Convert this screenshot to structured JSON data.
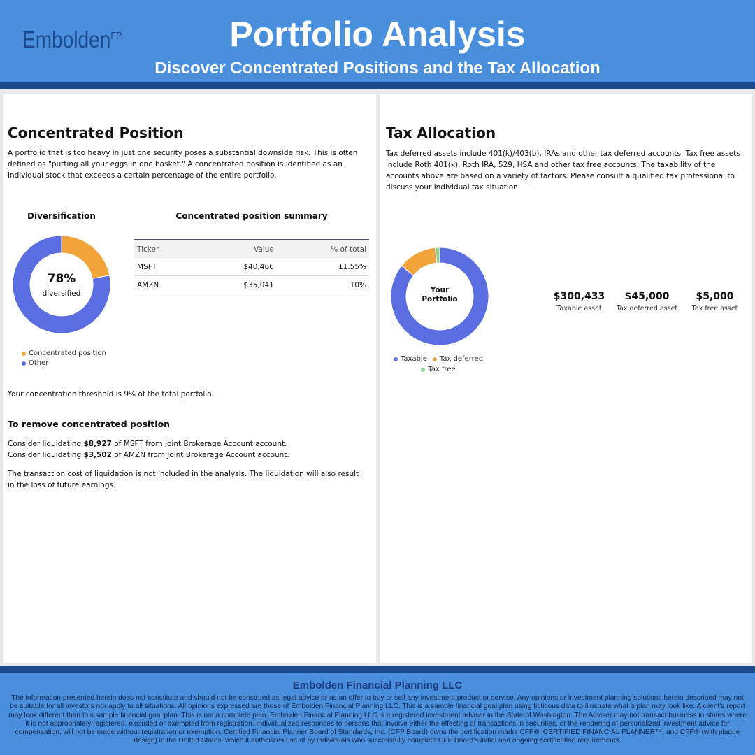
{
  "header": {
    "logo": "Embolden",
    "logo_sup": "FP",
    "title": "Portfolio Analysis",
    "subtitle": "Discover Concentrated Positions and the Tax Allocation"
  },
  "concentrated": {
    "heading": "Concentrated Position",
    "intro": "A portfolio that is too heavy in just one security poses a substantial downside risk. This is often defined as \"putting all your eggs in one basket.\" A concentrated position is identified as an individual stock that exceeds a certain percentage of the entire portfolio.",
    "table": {
      "title": "Concentrated position summary",
      "header": [
        "Ticker",
        "Value",
        "% of total"
      ],
      "rows": [
        [
          "MSFT",
          "$40,466",
          "11.55%"
        ],
        [
          "AMZN",
          "$35,041",
          "10%"
        ]
      ]
    },
    "threshold": "Your concentration threshold is 9% of the total portfolio.",
    "remove_heading": "To remove concentrated position",
    "actions": [
      [
        "Consider liquidating ",
        "$8,927",
        " of MSFT from Joint Brokerage Account account."
      ],
      [
        "Consider liquidating ",
        "$3,502",
        " of AMZN from Joint Brokerage Account account."
      ]
    ],
    "note": "The transaction cost of liquidation is not included in the analysis. The liquidation will also result in the loss of future earnings."
  },
  "tax": {
    "heading": "Tax Allocation",
    "intro": "Tax deferred assets include 401(k)/403(b), IRAs and other tax deferred accounts. Tax free assets include Roth 401(k), Roth IRA, 529, HSA and other tax free accounts. The taxability of the accounts above are based on a variety of factors. Please consult a qualified tax professional to discuss your individual tax situation.",
    "cards": [
      {
        "amount": "$300,433",
        "label": "Taxable asset"
      },
      {
        "amount": "$45,000",
        "label": "Tax deferred asset"
      },
      {
        "amount": "$5,000",
        "label": "Tax free asset"
      }
    ]
  },
  "chart_data": [
    {
      "type": "donut",
      "title": "Diversification",
      "center_text": "78%",
      "center_subtext": "diversified",
      "categories": [
        "Concentrated position",
        "Other"
      ],
      "values": [
        22,
        78
      ],
      "colors": [
        "#f2a33a",
        "#5b6ee1"
      ],
      "legend": "bottom-left"
    },
    {
      "type": "donut",
      "center_text": "Your Portfolio",
      "categories": [
        "Taxable",
        "Tax deferred",
        "Tax free"
      ],
      "values": [
        300433,
        45000,
        5000
      ],
      "colors": [
        "#5b6ee1",
        "#f2a33a",
        "#8fd18f"
      ],
      "legend": "bottom-center"
    }
  ],
  "footer": {
    "company": "Embolden Financial Planning LLC",
    "disclaimer": "The information presented herein does not constitute and should not be construed as legal advice or as an offer to buy or sell any investment product or service. Any opinions or investment planning solutions herein described may not be suitable for all investors nor apply to all situations. All opinions expressed are those of Embolden Financial Planning LLC. This is a sample financial goal plan using fictitious data to illustrate what a plan may look like. A client's report may look different than this sample financial goal plan. This is not a complete plan. Embolden Financial Planning LLC is a registered investment adviser in the State of Washington. The Adviser may not transact business in states where it is not appropriately registered, excluded or exempted from registration. Individualized responses to persons that involve either the effecting of transactions in securities, or the rendering of personalized investment advice for compensation, will not be made without registration or exemption. Certified Financial Planner Board of Standards, Inc. (CFP Board) owns the certification marks CFP®, CERTIFIED FINANCIAL PLANNER™, and CFP® (with plaque design) in the United States, which it authorizes use of by individuals who successfully complete CFP Board's initial and ongoing certification requirements."
  }
}
